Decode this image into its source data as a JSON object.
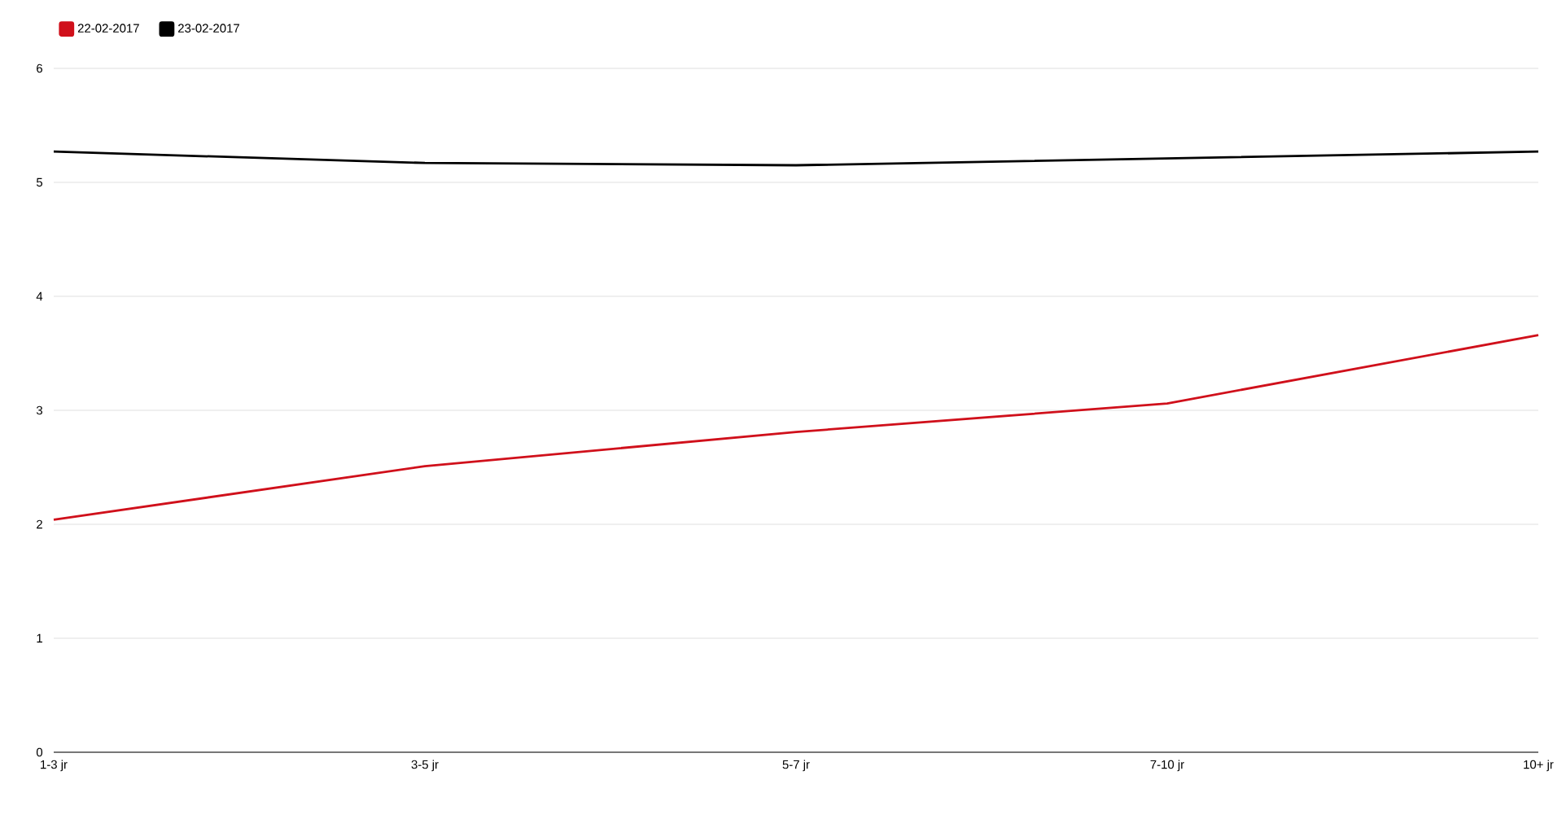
{
  "chart_data": {
    "type": "line",
    "categories": [
      "1-3 jr",
      "3-5 jr",
      "5-7 jr",
      "7-10 jr",
      "10+ jr"
    ],
    "series": [
      {
        "name": "22-02-2017",
        "color": "#d0101b",
        "values": [
          2.04,
          2.51,
          2.81,
          3.06,
          3.66
        ]
      },
      {
        "name": "23-02-2017",
        "color": "#000000",
        "values": [
          5.27,
          5.17,
          5.15,
          5.21,
          5.27
        ]
      }
    ],
    "ylim": [
      0,
      6
    ],
    "yticks": [
      0,
      1,
      2,
      3,
      4,
      5,
      6
    ],
    "grid": "y",
    "legend": "top left",
    "marker": "none",
    "line_style": "solid"
  }
}
